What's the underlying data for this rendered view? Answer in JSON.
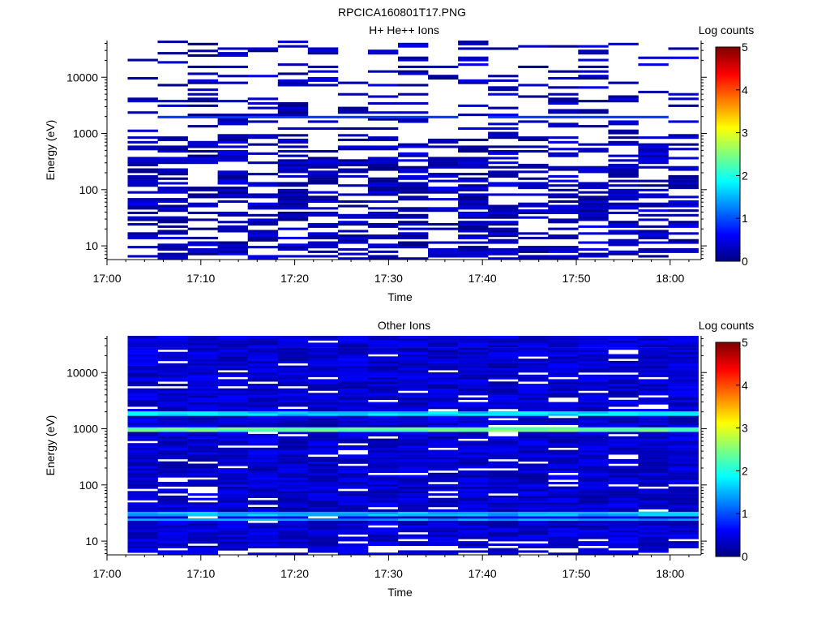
{
  "file_title": "RPCICA160801T17.PNG",
  "colors": {
    "white": "#ffffff",
    "black": "#000000",
    "colormap": [
      "#00007f",
      "#0000ff",
      "#007fff",
      "#00ffff",
      "#7fff7f",
      "#ffff00",
      "#ff7f00",
      "#ff0000",
      "#7f0000"
    ]
  },
  "chart_data": [
    {
      "type": "heatmap",
      "title": "H+ He++ Ions",
      "xlabel": "Time",
      "ylabel": "Energy (eV)",
      "x_ticks": [
        "17:00",
        "17:10",
        "17:20",
        "17:30",
        "17:40",
        "17:50",
        "18:00"
      ],
      "x_tick_minutes": [
        0,
        10,
        20,
        30,
        40,
        50,
        60
      ],
      "xlim_minutes": [
        0,
        63.3
      ],
      "y_scale": "log",
      "ylim": [
        5.7,
        45000
      ],
      "y_ticks": [
        "10",
        "100",
        "1000",
        "10000"
      ],
      "y_tick_values": [
        10,
        100,
        1000,
        10000
      ],
      "colorbar": {
        "label": "Log counts",
        "range": [
          0,
          5
        ],
        "ticks": [
          "0",
          "1",
          "2",
          "3",
          "4",
          "5"
        ]
      },
      "time_bins_minutes": [
        2.2,
        5.4,
        8.6,
        11.8,
        15.0,
        18.2,
        21.4,
        24.6,
        27.8,
        31.0,
        34.2,
        37.4,
        40.6,
        43.8,
        47.0,
        50.2,
        53.4,
        56.6,
        59.8,
        63.0
      ],
      "energy_bins": {
        "count": 96,
        "emin_eV": 5.7,
        "emax_eV": 45000,
        "spacing": "log"
      },
      "description_pattern": "sparse"
    },
    {
      "type": "heatmap",
      "title": "Other Ions",
      "xlabel": "Time",
      "ylabel": "Energy (eV)",
      "x_ticks": [
        "17:00",
        "17:10",
        "17:20",
        "17:30",
        "17:40",
        "17:50",
        "18:00"
      ],
      "x_tick_minutes": [
        0,
        10,
        20,
        30,
        40,
        50,
        60
      ],
      "xlim_minutes": [
        0,
        63.3
      ],
      "y_scale": "log",
      "ylim": [
        5.7,
        45000
      ],
      "y_ticks": [
        "10",
        "100",
        "1000",
        "10000"
      ],
      "y_tick_values": [
        10,
        100,
        1000,
        10000
      ],
      "colorbar": {
        "label": "Log counts",
        "range": [
          0,
          5
        ],
        "ticks": [
          "0",
          "1",
          "2",
          "3",
          "4",
          "5"
        ]
      },
      "time_bins_minutes": [
        2.2,
        5.4,
        8.6,
        11.8,
        15.0,
        18.2,
        21.4,
        24.6,
        27.8,
        31.0,
        34.2,
        37.4,
        40.6,
        43.8,
        47.0,
        50.2,
        53.4,
        56.6,
        59.8,
        63.0
      ],
      "energy_bins": {
        "count": 96,
        "emin_eV": 5.7,
        "emax_eV": 45000,
        "spacing": "log"
      },
      "bands": [
        {
          "energy_eV": 1000,
          "log_counts": 2.4
        },
        {
          "energy_eV": 1900,
          "log_counts": 1.7
        },
        {
          "energy_eV": 30,
          "log_counts": 1.5
        },
        {
          "energy_eV": 24,
          "log_counts": 1.4
        }
      ],
      "description_pattern": "dense"
    }
  ]
}
